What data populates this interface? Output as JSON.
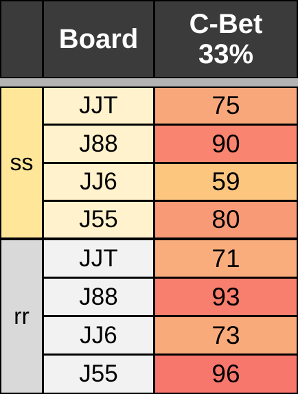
{
  "header": {
    "corner": "",
    "board": "Board",
    "cbet_line1": "C-Bet",
    "cbet_line2": "33%"
  },
  "colors": {
    "header_bg": "#3b3b3b",
    "ss_group_bg": "#ffe699",
    "ss_board_bg": "#fff2cc",
    "rr_group_bg": "#d9d9d9",
    "rr_board_bg": "#f2f2f2",
    "separator": "#b4b4b4"
  },
  "groups": [
    {
      "label": "ss",
      "rows": [
        {
          "board": "JJT",
          "cbet": "75",
          "color": "#f8a77a"
        },
        {
          "board": "J88",
          "cbet": "90",
          "color": "#f98570"
        },
        {
          "board": "JJ6",
          "cbet": "59",
          "color": "#fcc67e"
        },
        {
          "board": "J55",
          "cbet": "80",
          "color": "#f99a77"
        }
      ]
    },
    {
      "label": "rr",
      "rows": [
        {
          "board": "JJT",
          "cbet": "71",
          "color": "#faad7c"
        },
        {
          "board": "J88",
          "cbet": "93",
          "color": "#f87e6e"
        },
        {
          "board": "JJ6",
          "cbet": "73",
          "color": "#f9aa7b"
        },
        {
          "board": "J55",
          "cbet": "96",
          "color": "#f8776d"
        }
      ]
    }
  ]
}
